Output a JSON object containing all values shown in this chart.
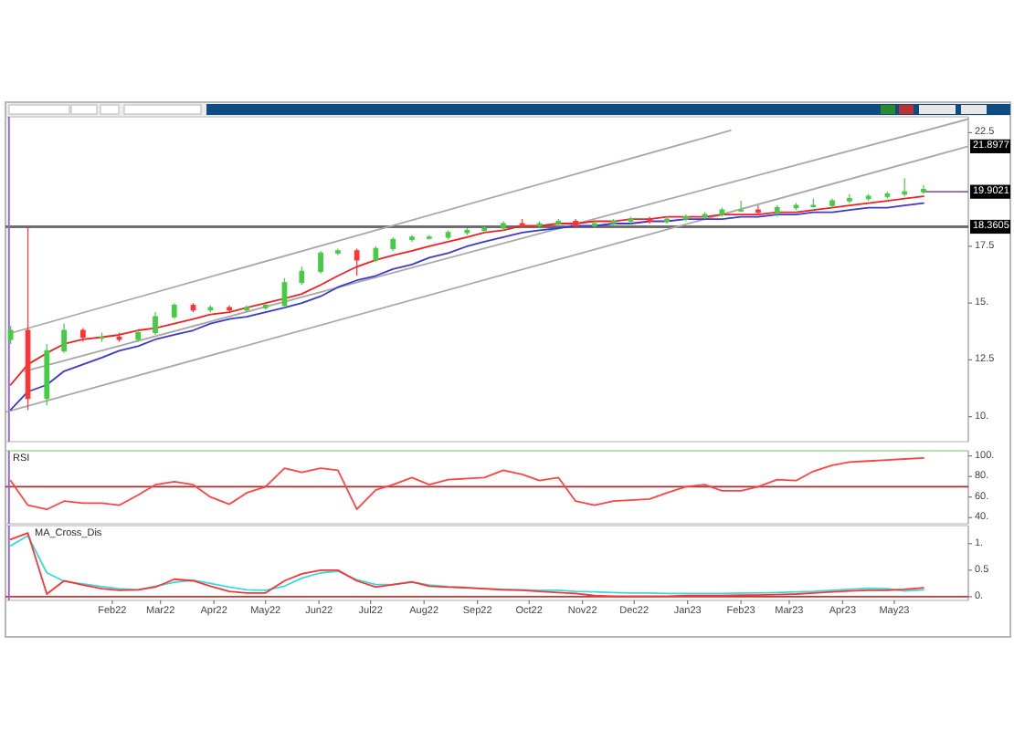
{
  "chart_data": [
    {
      "type": "candlestick",
      "x": [
        "2021-12-04",
        "2021-12-14",
        "2021-12-25",
        "2022-01-04",
        "2022-01-15",
        "2022-01-26",
        "2022-02-05",
        "2022-02-16",
        "2022-02-26",
        "2022-03-09",
        "2022-03-20",
        "2022-03-30",
        "2022-04-10",
        "2022-04-20",
        "2022-05-01",
        "2022-05-12",
        "2022-05-22",
        "2022-06-02",
        "2022-06-12",
        "2022-06-23",
        "2022-07-04",
        "2022-07-14",
        "2022-07-25",
        "2022-08-04",
        "2022-08-15",
        "2022-08-26",
        "2022-09-05",
        "2022-09-16",
        "2022-09-27",
        "2022-10-07",
        "2022-10-18",
        "2022-10-28",
        "2022-11-08",
        "2022-11-19",
        "2022-11-29",
        "2022-12-10",
        "2022-12-20",
        "2022-12-31",
        "2023-01-11",
        "2023-01-21",
        "2023-02-01",
        "2023-02-11",
        "2023-02-22",
        "2023-03-05",
        "2023-03-15",
        "2023-03-26",
        "2023-04-05",
        "2023-04-16",
        "2023-04-27",
        "2023-05-07",
        "2023-05-18"
      ],
      "ohlc": [
        [
          13.4,
          14.0,
          13.2,
          13.8
        ],
        [
          13.8,
          18.4,
          10.3,
          10.8
        ],
        [
          10.8,
          13.2,
          10.5,
          12.9
        ],
        [
          12.9,
          14.1,
          12.8,
          13.8
        ],
        [
          13.8,
          13.9,
          13.3,
          13.5
        ],
        [
          13.5,
          13.7,
          13.3,
          13.5
        ],
        [
          13.5,
          13.7,
          13.3,
          13.4
        ],
        [
          13.4,
          13.8,
          13.3,
          13.7
        ],
        [
          13.7,
          14.6,
          13.6,
          14.4
        ],
        [
          14.4,
          15.0,
          14.3,
          14.9
        ],
        [
          14.9,
          15.0,
          14.6,
          14.7
        ],
        [
          14.7,
          14.9,
          14.6,
          14.8
        ],
        [
          14.8,
          14.9,
          14.6,
          14.7
        ],
        [
          14.7,
          14.9,
          14.6,
          14.8
        ],
        [
          14.8,
          15.0,
          14.7,
          14.9
        ],
        [
          14.9,
          16.1,
          14.8,
          15.9
        ],
        [
          15.9,
          16.6,
          15.8,
          16.4
        ],
        [
          16.4,
          17.3,
          16.3,
          17.2
        ],
        [
          17.2,
          17.4,
          17.1,
          17.3
        ],
        [
          17.3,
          17.4,
          16.2,
          16.9
        ],
        [
          16.9,
          17.5,
          16.8,
          17.4
        ],
        [
          17.4,
          17.9,
          17.3,
          17.8
        ],
        [
          17.8,
          18.0,
          17.7,
          17.9
        ],
        [
          17.9,
          18.0,
          17.8,
          17.9
        ],
        [
          17.9,
          18.2,
          17.8,
          18.1
        ],
        [
          18.1,
          18.3,
          18.0,
          18.2
        ],
        [
          18.2,
          18.4,
          18.1,
          18.3
        ],
        [
          18.3,
          18.6,
          18.2,
          18.5
        ],
        [
          18.5,
          18.7,
          18.3,
          18.4
        ],
        [
          18.4,
          18.6,
          18.3,
          18.5
        ],
        [
          18.5,
          18.7,
          18.4,
          18.6
        ],
        [
          18.6,
          18.7,
          18.3,
          18.4
        ],
        [
          18.4,
          18.6,
          18.3,
          18.5
        ],
        [
          18.5,
          18.7,
          18.4,
          18.6
        ],
        [
          18.6,
          18.8,
          18.5,
          18.7
        ],
        [
          18.7,
          18.8,
          18.5,
          18.6
        ],
        [
          18.6,
          18.8,
          18.5,
          18.7
        ],
        [
          18.7,
          18.9,
          18.6,
          18.8
        ],
        [
          18.8,
          19.0,
          18.7,
          18.9
        ],
        [
          18.9,
          19.2,
          18.8,
          19.1
        ],
        [
          19.1,
          19.5,
          19.0,
          19.1
        ],
        [
          19.1,
          19.3,
          18.9,
          19.0
        ],
        [
          19.0,
          19.3,
          18.8,
          19.2
        ],
        [
          19.2,
          19.4,
          19.1,
          19.3
        ],
        [
          19.3,
          19.6,
          19.2,
          19.3
        ],
        [
          19.3,
          19.6,
          19.2,
          19.5
        ],
        [
          19.5,
          19.8,
          19.4,
          19.6
        ],
        [
          19.6,
          19.8,
          19.5,
          19.7
        ],
        [
          19.7,
          19.9,
          19.6,
          19.8
        ],
        [
          19.8,
          20.5,
          19.7,
          19.9
        ],
        [
          19.9,
          20.2,
          19.8,
          20.0
        ]
      ],
      "colors": [
        "#44cc44",
        "#ff3333",
        "#44cc44",
        "#44cc44",
        "#ff3333",
        "#44cc44",
        "#ff3333",
        "#44cc44",
        "#44cc44",
        "#44cc44",
        "#ff3333",
        "#44cc44",
        "#ff3333",
        "#44cc44",
        "#44cc44",
        "#44cc44",
        "#44cc44",
        "#44cc44",
        "#44cc44",
        "#ff3333",
        "#44cc44",
        "#44cc44",
        "#44cc44",
        "#44cc44",
        "#44cc44",
        "#44cc44",
        "#44cc44",
        "#44cc44",
        "#ff3333",
        "#44cc44",
        "#44cc44",
        "#ff3333",
        "#44cc44",
        "#44cc44",
        "#44cc44",
        "#ff3333",
        "#44cc44",
        "#44cc44",
        "#44cc44",
        "#44cc44",
        "#44cc44",
        "#ff3333",
        "#44cc44",
        "#44cc44",
        "#44cc44",
        "#44cc44",
        "#44cc44",
        "#44cc44",
        "#44cc44",
        "#44cc44",
        "#44cc44"
      ],
      "series": [
        {
          "type": "line",
          "color": "#a8a8a8",
          "x": [
            "2021-12-05",
            "2023-01-26"
          ],
          "values": [
            13.7,
            22.6
          ]
        },
        {
          "type": "line",
          "color": "#a8a8a8",
          "x": [
            "2021-12-12",
            "2023-06-13"
          ],
          "values": [
            12.0,
            23.1
          ]
        },
        {
          "type": "line",
          "color": "#a8a8a8",
          "x": [
            "2021-12-01",
            "2023-06-13"
          ],
          "values": [
            10.2,
            21.9
          ]
        },
        {
          "type": "line",
          "color": "#3a3acc",
          "values": [
            10.3,
            11.1,
            11.4,
            12.0,
            12.3,
            12.6,
            12.9,
            13.1,
            13.4,
            13.6,
            13.8,
            14.1,
            14.3,
            14.4,
            14.6,
            14.8,
            15.0,
            15.3,
            15.7,
            16.0,
            16.2,
            16.5,
            16.7,
            17.0,
            17.2,
            17.5,
            17.7,
            17.9,
            18.1,
            18.2,
            18.3,
            18.4,
            18.4,
            18.5,
            18.5,
            18.6,
            18.6,
            18.7,
            18.7,
            18.7,
            18.8,
            18.8,
            18.9,
            18.9,
            19.0,
            19.0,
            19.1,
            19.2,
            19.2,
            19.3,
            19.4
          ]
        },
        {
          "type": "line",
          "color": "#ee2222",
          "values": [
            11.4,
            12.3,
            12.8,
            13.2,
            13.4,
            13.5,
            13.6,
            13.8,
            13.9,
            14.1,
            14.3,
            14.5,
            14.6,
            14.8,
            15.0,
            15.2,
            15.4,
            15.8,
            16.2,
            16.6,
            16.9,
            17.1,
            17.3,
            17.5,
            17.7,
            17.9,
            18.1,
            18.2,
            18.4,
            18.4,
            18.5,
            18.5,
            18.6,
            18.6,
            18.7,
            18.7,
            18.8,
            18.8,
            18.8,
            18.9,
            18.9,
            18.9,
            19.0,
            19.0,
            19.1,
            19.2,
            19.3,
            19.4,
            19.5,
            19.6,
            19.7
          ]
        },
        {
          "type": "line",
          "color": "#8a60a8",
          "x": [
            "2023-05-18",
            "2023-06-13"
          ],
          "values": [
            19.9,
            19.9
          ]
        }
      ],
      "xlim": [
        "2021-12-01",
        "2023-06-13"
      ],
      "ylim": [
        8.9,
        23.2
      ],
      "yticks": [
        {
          "value": 10,
          "label": "10."
        },
        12.5,
        {
          "value": 15,
          "label": "15."
        },
        17.5,
        22.5
      ],
      "ref_lines": [
        {
          "axis": "y",
          "value": 18.3605,
          "label": "18.3605",
          "color": "#6e6e6e"
        },
        {
          "axis": "x",
          "value": "2021-12-03",
          "color": "#9966cc"
        }
      ],
      "annotations": [
        {
          "text": "21.8977",
          "x": "2023-06-13",
          "y": 21.9
        },
        {
          "text": "19.9021",
          "x": "2023-06-13",
          "y": 19.9
        }
      ],
      "tick_labels": "y"
    },
    {
      "type": "line",
      "title": "RSI",
      "x": [
        "2021-12-04",
        "2021-12-14",
        "2021-12-25",
        "2022-01-04",
        "2022-01-15",
        "2022-01-26",
        "2022-02-05",
        "2022-02-16",
        "2022-02-26",
        "2022-03-09",
        "2022-03-20",
        "2022-03-30",
        "2022-04-10",
        "2022-04-20",
        "2022-05-01",
        "2022-05-12",
        "2022-05-22",
        "2022-06-02",
        "2022-06-12",
        "2022-06-23",
        "2022-07-04",
        "2022-07-14",
        "2022-07-25",
        "2022-08-04",
        "2022-08-15",
        "2022-08-26",
        "2022-09-05",
        "2022-09-16",
        "2022-09-27",
        "2022-10-07",
        "2022-10-18",
        "2022-10-28",
        "2022-11-08",
        "2022-11-19",
        "2022-11-29",
        "2022-12-10",
        "2022-12-20",
        "2022-12-31",
        "2023-01-11",
        "2023-01-21",
        "2023-02-01",
        "2023-02-11",
        "2023-02-22",
        "2023-03-05",
        "2023-03-15",
        "2023-03-26",
        "2023-04-05",
        "2023-04-16",
        "2023-04-27",
        "2023-05-07",
        "2023-05-18"
      ],
      "values": [
        76,
        52,
        48,
        56,
        54,
        54,
        52,
        62,
        72,
        75,
        72,
        60,
        53,
        64,
        70,
        88,
        84,
        88,
        86,
        48,
        67,
        72,
        79,
        72,
        77,
        78,
        79,
        86,
        82,
        76,
        79,
        56,
        52,
        56,
        57,
        58,
        64,
        70,
        72,
        66,
        66,
        70,
        77,
        76,
        85,
        91,
        94,
        95,
        96,
        97,
        98
      ],
      "color": "#ff4444",
      "xlim": [
        "2021-12-01",
        "2023-06-13"
      ],
      "ylim": [
        34,
        105
      ],
      "yticks": [
        {
          "value": 40,
          "label": "40."
        },
        {
          "value": 60,
          "label": "60."
        },
        {
          "value": 80,
          "label": "80."
        },
        {
          "value": 100,
          "label": "100."
        }
      ],
      "ref_lines": [
        {
          "axis": "y",
          "value": 70,
          "color": "#993333"
        },
        {
          "axis": "x",
          "value": "2021-12-03",
          "color": "#9966cc"
        }
      ],
      "tick_labels": "y"
    },
    {
      "type": "line",
      "title": "MA_Cross_Dis",
      "x": [
        "2021-12-04",
        "2021-12-14",
        "2021-12-25",
        "2022-01-04",
        "2022-01-15",
        "2022-01-26",
        "2022-02-05",
        "2022-02-16",
        "2022-02-26",
        "2022-03-09",
        "2022-03-20",
        "2022-03-30",
        "2022-04-10",
        "2022-04-20",
        "2022-05-01",
        "2022-05-12",
        "2022-05-22",
        "2022-06-02",
        "2022-06-12",
        "2022-06-23",
        "2022-07-04",
        "2022-07-14",
        "2022-07-25",
        "2022-08-04",
        "2022-08-15",
        "2022-08-26",
        "2022-09-05",
        "2022-09-16",
        "2022-09-27",
        "2022-10-07",
        "2022-10-18",
        "2022-10-28",
        "2022-11-08",
        "2022-11-19",
        "2022-11-29",
        "2022-12-10",
        "2022-12-20",
        "2022-12-31",
        "2023-01-11",
        "2023-01-21",
        "2023-02-01",
        "2023-02-11",
        "2023-02-22",
        "2023-03-05",
        "2023-03-15",
        "2023-03-26",
        "2023-04-05",
        "2023-04-16",
        "2023-04-27",
        "2023-05-07",
        "2023-05-18"
      ],
      "series": [
        {
          "color": "#33dddd",
          "values": [
            0.96,
            1.15,
            0.45,
            0.29,
            0.24,
            0.19,
            0.15,
            0.13,
            0.2,
            0.27,
            0.31,
            0.25,
            0.18,
            0.13,
            0.12,
            0.2,
            0.35,
            0.45,
            0.48,
            0.32,
            0.23,
            0.23,
            0.27,
            0.22,
            0.19,
            0.17,
            0.15,
            0.14,
            0.13,
            0.12,
            0.12,
            0.1,
            0.09,
            0.08,
            0.07,
            0.07,
            0.06,
            0.06,
            0.06,
            0.06,
            0.07,
            0.07,
            0.08,
            0.09,
            0.1,
            0.12,
            0.14,
            0.16,
            0.15,
            0.11,
            0.13
          ]
        },
        {
          "color": "#ff3333",
          "values": [
            1.08,
            1.2,
            0.05,
            0.3,
            0.22,
            0.15,
            0.12,
            0.13,
            0.18,
            0.33,
            0.3,
            0.2,
            0.1,
            0.07,
            0.07,
            0.3,
            0.43,
            0.5,
            0.5,
            0.3,
            0.18,
            0.23,
            0.28,
            0.2,
            0.18,
            0.17,
            0.15,
            0.13,
            0.12,
            0.1,
            0.08,
            0.06,
            0.02,
            0.01,
            0.01,
            0.01,
            0.01,
            0.02,
            0.02,
            0.02,
            0.03,
            0.03,
            0.04,
            0.05,
            0.07,
            0.09,
            0.11,
            0.12,
            0.12,
            0.14,
            0.17
          ]
        }
      ],
      "xlim": [
        "2021-12-01",
        "2023-06-13"
      ],
      "xticks": [
        {
          "value": "2022-02-01",
          "label": "Feb22"
        },
        {
          "value": "2022-03-01",
          "label": "Mar22"
        },
        {
          "value": "2022-04-01",
          "label": "Apr22"
        },
        {
          "value": "2022-05-01",
          "label": "May22"
        },
        {
          "value": "2022-06-01",
          "label": "Jun22"
        },
        {
          "value": "2022-07-01",
          "label": "Jul22"
        },
        {
          "value": "2022-08-01",
          "label": "Aug22"
        },
        {
          "value": "2022-09-01",
          "label": "Sep22"
        },
        {
          "value": "2022-10-01",
          "label": "Oct22"
        },
        {
          "value": "2022-11-01",
          "label": "Nov22"
        },
        {
          "value": "2022-12-01",
          "label": "Dec22"
        },
        {
          "value": "2023-01-01",
          "label": "Jan23"
        },
        {
          "value": "2023-02-01",
          "label": "Feb23"
        },
        {
          "value": "2023-03-01",
          "label": "Mar23"
        },
        {
          "value": "2023-04-01",
          "label": "Apr23"
        },
        {
          "value": "2023-05-01",
          "label": "May23"
        }
      ],
      "ylim": [
        -0.07,
        1.34
      ],
      "yticks": [
        {
          "value": 0,
          "label": "0."
        },
        0.5,
        {
          "value": 1,
          "label": "1."
        }
      ],
      "ref_lines": [
        {
          "axis": "y",
          "value": 0,
          "color": "#cc3333"
        },
        {
          "axis": "x",
          "value": "2021-12-03",
          "color": "#9966cc"
        }
      ]
    }
  ]
}
